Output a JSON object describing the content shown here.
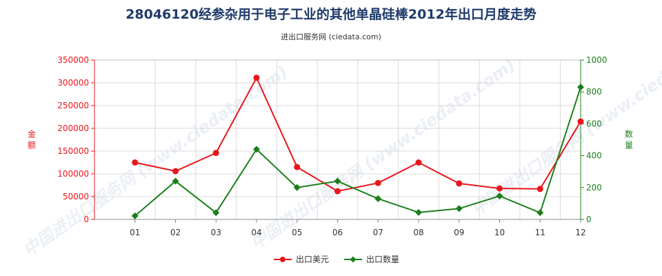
{
  "chart_data": {
    "type": "line",
    "title": "28046120经参杂用于电子工业的其他单晶硅棒2012年出口月度走势",
    "subtitle": "进出口服务网 (ciedata.com)",
    "watermark": "中国进出口服务网 (www.ciedata.com)",
    "categories": [
      "01",
      "02",
      "03",
      "04",
      "05",
      "06",
      "07",
      "08",
      "09",
      "10",
      "11",
      "12"
    ],
    "y_left": {
      "label": "金额",
      "ylim": [
        0,
        350000
      ],
      "ticks": [
        0,
        50000,
        100000,
        150000,
        200000,
        250000,
        300000,
        350000
      ],
      "tick_labels": [
        "0",
        "50000",
        "100000",
        "150000",
        "200000",
        "250000",
        "300000",
        "350000"
      ],
      "color": "#e8161b"
    },
    "y_right": {
      "label": "数量",
      "ylim": [
        0,
        1000
      ],
      "ticks": [
        0,
        200,
        400,
        600,
        800,
        1000
      ],
      "tick_labels": [
        "0",
        "200",
        "400",
        "600",
        "800",
        "1000"
      ],
      "color": "#1b7f1b"
    },
    "series": [
      {
        "name": "出口美元",
        "axis": "left",
        "color": "#e8161b",
        "values": [
          125000,
          106000,
          146000,
          311000,
          115000,
          62000,
          80000,
          125000,
          79000,
          68000,
          67000,
          215000
        ]
      },
      {
        "name": "出口数量",
        "axis": "right",
        "color": "#1b7f1b",
        "values": [
          22,
          240,
          42,
          440,
          200,
          240,
          130,
          44,
          68,
          147,
          42,
          830
        ]
      }
    ],
    "grid": true,
    "legend_position": "bottom-center"
  }
}
